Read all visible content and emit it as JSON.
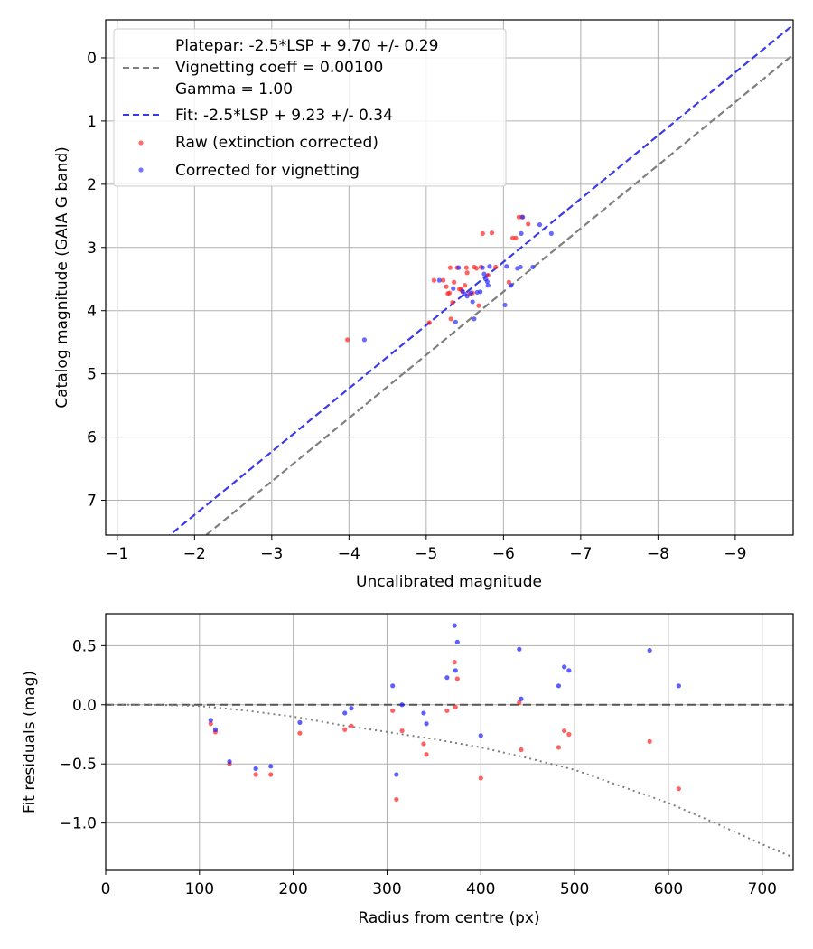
{
  "chart_data": [
    {
      "type": "scatter",
      "xlabel": "Uncalibrated magnitude",
      "ylabel": "Catalog magnitude (GAIA G band)",
      "xlim": [
        -0.85,
        -9.75
      ],
      "ylim": [
        7.55,
        -0.6
      ],
      "x_ticks": [
        -1,
        -2,
        -3,
        -4,
        -5,
        -6,
        -7,
        -8,
        -9
      ],
      "x_tick_labels": [
        "−1",
        "−2",
        "−3",
        "−4",
        "−5",
        "−6",
        "−7",
        "−8",
        "−9"
      ],
      "y_ticks": [
        0,
        1,
        2,
        3,
        4,
        5,
        6,
        7
      ],
      "y_tick_labels": [
        "0",
        "1",
        "2",
        "3",
        "4",
        "5",
        "6",
        "7"
      ],
      "grid": true,
      "legend_position": "upper-left",
      "legend_lines": [
        {
          "text": "Platepar: -2.5*LSP + 9.70 +/- 0.29",
          "style": "none"
        },
        {
          "text": "Vignetting coeff = 0.00100",
          "style": "gray-dashed"
        },
        {
          "text": "Gamma = 1.00",
          "style": "none"
        },
        {
          "text": "Fit: -2.5*LSP + 9.23 +/- 0.34",
          "style": "blue-dashed"
        },
        {
          "text": "Raw (extinction corrected)",
          "style": "red-dot"
        },
        {
          "text": "Corrected for vignetting",
          "style": "blue-dot"
        }
      ],
      "lines": [
        {
          "name": "Vignetting coeff = 0.00100",
          "color": "#7f7f7f",
          "dash": "dashed",
          "slope": 1,
          "intercept": 9.7
        },
        {
          "name": "Fit: -2.5*LSP + 9.23 +/- 0.34",
          "color": "#3a3ae8",
          "dash": "dashed",
          "slope": 1,
          "intercept": 9.23
        }
      ],
      "series": [
        {
          "name": "Raw (extinction corrected)",
          "color": "#ff2020",
          "points": [
            [
              -3.98,
              4.46
            ],
            [
              -5.04,
              4.19
            ],
            [
              -5.1,
              3.52
            ],
            [
              -5.22,
              3.52
            ],
            [
              -5.26,
              3.62
            ],
            [
              -5.28,
              3.73
            ],
            [
              -5.3,
              3.72
            ],
            [
              -5.31,
              3.32
            ],
            [
              -5.32,
              4.13
            ],
            [
              -5.34,
              3.87
            ],
            [
              -5.36,
              3.55
            ],
            [
              -5.4,
              3.32
            ],
            [
              -5.43,
              3.66
            ],
            [
              -5.45,
              3.66
            ],
            [
              -5.47,
              3.7
            ],
            [
              -5.5,
              3.6
            ],
            [
              -5.52,
              3.32
            ],
            [
              -5.53,
              3.4
            ],
            [
              -5.56,
              3.74
            ],
            [
              -5.6,
              3.72
            ],
            [
              -5.62,
              3.31
            ],
            [
              -5.65,
              3.33
            ],
            [
              -5.68,
              3.92
            ],
            [
              -5.71,
              3.31
            ],
            [
              -5.73,
              2.78
            ],
            [
              -5.8,
              3.44
            ],
            [
              -5.85,
              2.77
            ],
            [
              -5.9,
              3.31
            ],
            [
              -6.07,
              3.55
            ],
            [
              -6.12,
              2.85
            ],
            [
              -6.16,
              2.85
            ],
            [
              -6.2,
              2.52
            ],
            [
              -6.24,
              2.52
            ],
            [
              -6.32,
              2.63
            ]
          ]
        },
        {
          "name": "Corrected for vignetting",
          "color": "#2a2aff",
          "points": [
            [
              -4.2,
              4.46
            ],
            [
              -5.17,
              3.52
            ],
            [
              -5.35,
              3.65
            ],
            [
              -5.38,
              4.18
            ],
            [
              -5.42,
              3.32
            ],
            [
              -5.47,
              3.69
            ],
            [
              -5.5,
              3.74
            ],
            [
              -5.53,
              3.77
            ],
            [
              -5.58,
              3.72
            ],
            [
              -5.6,
              3.86
            ],
            [
              -5.62,
              4.13
            ],
            [
              -5.66,
              3.71
            ],
            [
              -5.7,
              3.7
            ],
            [
              -5.73,
              3.32
            ],
            [
              -5.75,
              3.42
            ],
            [
              -5.77,
              3.5
            ],
            [
              -5.79,
              3.54
            ],
            [
              -5.8,
              3.6
            ],
            [
              -5.82,
              3.3
            ],
            [
              -6.02,
              3.91
            ],
            [
              -6.04,
              3.3
            ],
            [
              -6.1,
              3.6
            ],
            [
              -6.18,
              3.33
            ],
            [
              -6.22,
              3.31
            ],
            [
              -6.23,
              2.78
            ],
            [
              -6.25,
              2.52
            ],
            [
              -6.38,
              3.31
            ],
            [
              -6.47,
              2.64
            ],
            [
              -6.62,
              2.78
            ]
          ]
        }
      ]
    },
    {
      "type": "scatter",
      "xlabel": "Radius from centre (px)",
      "ylabel": "Fit residuals (mag)",
      "xlim": [
        0,
        733
      ],
      "ylim": [
        -1.4,
        0.77
      ],
      "x_ticks": [
        0,
        100,
        200,
        300,
        400,
        500,
        600,
        700
      ],
      "x_tick_labels": [
        "0",
        "100",
        "200",
        "300",
        "400",
        "500",
        "600",
        "700"
      ],
      "y_ticks": [
        0.5,
        0.0,
        -0.5,
        -1.0
      ],
      "y_tick_labels": [
        "0.5",
        "0.0",
        "−0.5",
        "−1.0"
      ],
      "grid": true,
      "reference_lines": [
        {
          "kind": "horizontal",
          "y": 0,
          "color": "#555555",
          "dash": "dashed"
        },
        {
          "kind": "curve",
          "color": "#7f7f7f",
          "dash": "dotted",
          "x": [
            0,
            50,
            100,
            150,
            200,
            250,
            300,
            350,
            400,
            450,
            500,
            550,
            600,
            650,
            700,
            733
          ],
          "y": [
            0,
            0,
            -0.01,
            -0.05,
            -0.1,
            -0.17,
            -0.23,
            -0.29,
            -0.36,
            -0.45,
            -0.55,
            -0.69,
            -0.83,
            -1.0,
            -1.18,
            -1.29
          ]
        }
      ],
      "series": [
        {
          "name": "Raw (extinction corrected)",
          "color": "#ff2020",
          "points": [
            [
              112,
              -0.16
            ],
            [
              117,
              -0.23
            ],
            [
              132,
              -0.5
            ],
            [
              160,
              -0.59
            ],
            [
              176,
              -0.59
            ],
            [
              207,
              -0.24
            ],
            [
              255,
              -0.21
            ],
            [
              262,
              -0.18
            ],
            [
              306,
              -0.05
            ],
            [
              310,
              -0.8
            ],
            [
              316,
              -0.22
            ],
            [
              339,
              -0.33
            ],
            [
              342,
              -0.42
            ],
            [
              364,
              -0.05
            ],
            [
              372,
              0.36
            ],
            [
              373,
              -0.02
            ],
            [
              375,
              0.22
            ],
            [
              400,
              -0.62
            ],
            [
              441,
              0.02
            ],
            [
              443,
              -0.38
            ],
            [
              483,
              -0.36
            ],
            [
              489,
              -0.22
            ],
            [
              494,
              -0.25
            ],
            [
              580,
              -0.31
            ],
            [
              611,
              -0.71
            ]
          ]
        },
        {
          "name": "Corrected for vignetting",
          "color": "#1a1aff",
          "points": [
            [
              112,
              -0.13
            ],
            [
              117,
              -0.21
            ],
            [
              132,
              -0.48
            ],
            [
              160,
              -0.54
            ],
            [
              176,
              -0.52
            ],
            [
              207,
              -0.15
            ],
            [
              255,
              -0.07
            ],
            [
              262,
              -0.03
            ],
            [
              306,
              0.16
            ],
            [
              310,
              -0.59
            ],
            [
              316,
              0.0
            ],
            [
              339,
              -0.07
            ],
            [
              342,
              -0.16
            ],
            [
              364,
              0.23
            ],
            [
              372,
              0.67
            ],
            [
              373,
              0.29
            ],
            [
              375,
              0.53
            ],
            [
              400,
              -0.26
            ],
            [
              441,
              0.47
            ],
            [
              443,
              0.05
            ],
            [
              483,
              0.16
            ],
            [
              489,
              0.32
            ],
            [
              494,
              0.29
            ],
            [
              580,
              0.46
            ],
            [
              611,
              0.16
            ]
          ]
        }
      ]
    }
  ]
}
